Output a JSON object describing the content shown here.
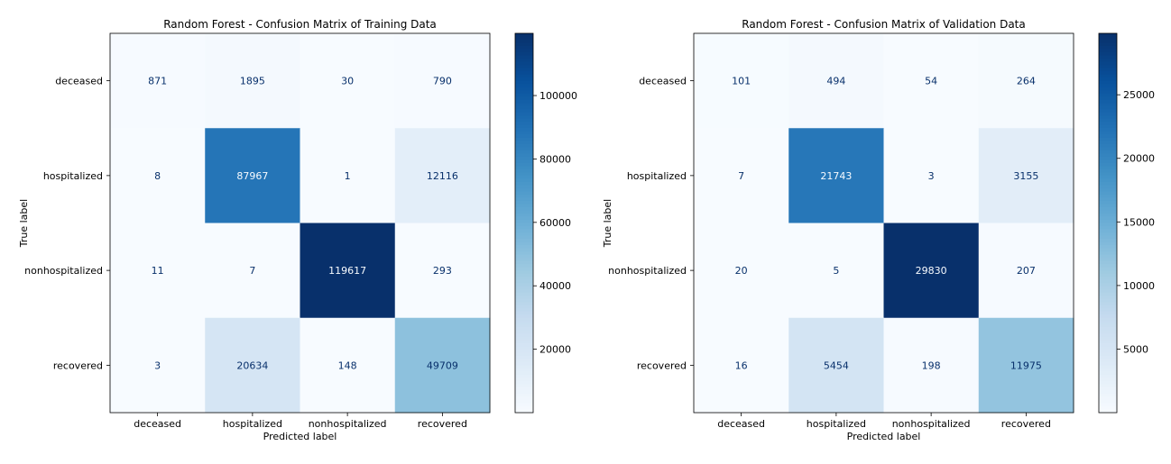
{
  "chart_data": [
    {
      "type": "heatmap",
      "title": "Random Forest - Confusion Matrix of Training Data",
      "xlabel": "Predicted label",
      "ylabel": "True label",
      "x_categories": [
        "deceased",
        "hospitalized",
        "nonhospitalized",
        "recovered"
      ],
      "y_categories": [
        "deceased",
        "hospitalized",
        "nonhospitalized",
        "recovered"
      ],
      "values": [
        [
          871,
          1895,
          30,
          790
        ],
        [
          8,
          87967,
          1,
          12116
        ],
        [
          11,
          7,
          119617,
          293
        ],
        [
          3,
          20634,
          148,
          49709
        ]
      ],
      "colormap": "Blues",
      "colorbar": {
        "range": [
          1,
          119617
        ],
        "ticks": [
          20000,
          40000,
          60000,
          80000,
          100000
        ],
        "tick_labels": [
          "20000",
          "40000",
          "60000",
          "80000",
          "100000"
        ]
      },
      "grid": false
    },
    {
      "type": "heatmap",
      "title": "Random Forest - Confusion Matrix of Validation Data",
      "xlabel": "Predicted label",
      "ylabel": "True label",
      "x_categories": [
        "deceased",
        "hospitalized",
        "nonhospitalized",
        "recovered"
      ],
      "y_categories": [
        "deceased",
        "hospitalized",
        "nonhospitalized",
        "recovered"
      ],
      "values": [
        [
          101,
          494,
          54,
          264
        ],
        [
          7,
          21743,
          3,
          3155
        ],
        [
          20,
          5,
          29830,
          207
        ],
        [
          16,
          5454,
          198,
          11975
        ]
      ],
      "colormap": "Blues",
      "colorbar": {
        "range": [
          3,
          29830
        ],
        "ticks": [
          5000,
          10000,
          15000,
          20000,
          25000
        ],
        "tick_labels": [
          "5000",
          "10000",
          "15000",
          "20000",
          "25000"
        ]
      },
      "grid": false
    }
  ]
}
